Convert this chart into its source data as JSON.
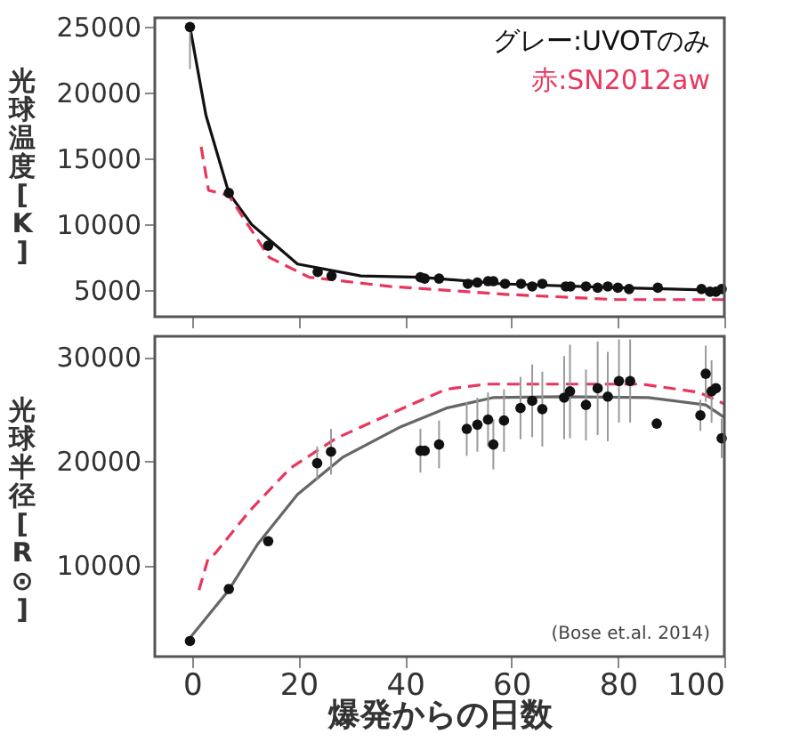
{
  "chart_data": [
    {
      "type": "scatter",
      "ylabel": "光球温度[K]",
      "xlim": [
        -7,
        100
      ],
      "xticks": [
        {
          "value": 0,
          "label": null
        },
        {
          "value": 20,
          "label": null
        },
        {
          "value": 40,
          "label": null
        },
        {
          "value": 60,
          "label": null
        },
        {
          "value": 80,
          "label": null
        },
        {
          "value": 100,
          "label": null
        }
      ],
      "ylim": [
        3000,
        25700
      ],
      "yticks": [
        5000,
        10000,
        15000,
        20000,
        25000
      ],
      "tick_labels": "y",
      "grid": false,
      "annotations": [
        "グレー:UVOTのみ",
        "赤:SN2012aw"
      ],
      "series": [
        {
          "type": "line",
          "color": "#111111",
          "line_style": "solid",
          "x": [
            -0.4,
            2.6,
            6.9,
            11.2,
            19.8,
            31.7,
            43,
            58,
            80,
            100
          ],
          "values": [
            25000,
            18300,
            12400,
            10000,
            7000,
            6100,
            6000,
            5500,
            5200,
            5000
          ]
        },
        {
          "type": "line",
          "color": "#e8365d",
          "line_style": "dashed",
          "x": [
            1.7,
            3.1,
            6.9,
            14.5,
            22,
            37.1,
            58.8,
            79.8,
            100
          ],
          "values": [
            15900,
            12600,
            12200,
            7500,
            6000,
            5300,
            4700,
            4300,
            4300
          ]
        },
        {
          "color": "#111111",
          "marker": "circle",
          "x": [
            -0.4,
            6.9,
            14.3,
            23.6,
            26.2,
            42.9,
            43.7,
            46.4,
            51.8,
            53.6,
            55.6,
            56.6,
            58.8,
            61.8,
            63.9,
            65.8,
            70.2,
            71.1,
            74,
            76.2,
            78.1,
            80,
            82.1,
            87.5,
            95.7,
            97.3,
            98.4,
            99.5
          ],
          "values": [
            25000,
            12400,
            8400,
            6400,
            6100,
            6000,
            5900,
            5900,
            5500,
            5600,
            5700,
            5700,
            5500,
            5500,
            5300,
            5500,
            5300,
            5300,
            5300,
            5200,
            5300,
            5200,
            5100,
            5200,
            5100,
            4900,
            4900,
            5100
          ],
          "errors": [
            [
              21800,
              25000
            ],
            null,
            null,
            null,
            null,
            null,
            null,
            null,
            null,
            null,
            null,
            null,
            null,
            null,
            null,
            null,
            null,
            null,
            null,
            null,
            null,
            null,
            null,
            null,
            null,
            null,
            null,
            null
          ]
        }
      ]
    },
    {
      "type": "scatter",
      "ylabel": "光球半径[R⊙]",
      "xlabel": "爆発からの日数",
      "xlim": [
        -7,
        100
      ],
      "xticks": [
        0,
        20,
        40,
        60,
        80,
        100
      ],
      "ylim": [
        1200,
        32000
      ],
      "yticks": [
        10000,
        20000,
        30000
      ],
      "grid": false,
      "annotations": [
        "(Bose et.al. 2014)"
      ],
      "series": [
        {
          "type": "line",
          "color": "#666666",
          "line_style": "solid",
          "x": [
            -0.4,
            6.9,
            12.3,
            19.8,
            28.4,
            39.2,
            47.8,
            56.5,
            69.4,
            85.7,
            96.5,
            100
          ],
          "values": [
            3000,
            7600,
            12000,
            16800,
            20400,
            23300,
            25100,
            26100,
            26200,
            26100,
            25400,
            24200
          ]
        },
        {
          "type": "line",
          "color": "#e8365d",
          "line_style": "dashed",
          "x": [
            1.3,
            3,
            4.3,
            10.8,
            18.4,
            27.1,
            37.9,
            47.7,
            55.3,
            68.3,
            84.5,
            95.3,
            100
          ],
          "values": [
            7600,
            10600,
            11100,
            15200,
            19300,
            22200,
            24700,
            26900,
            27400,
            27400,
            27400,
            26600,
            25500
          ]
        },
        {
          "color": "#111111",
          "marker": "circle",
          "x": [
            -0.4,
            6.9,
            14.3,
            23.5,
            26.1,
            42.9,
            43.7,
            46.4,
            51.6,
            53.6,
            55.6,
            56.6,
            58.6,
            61.7,
            63.9,
            65.8,
            69.9,
            71,
            74,
            76.2,
            78.1,
            80.2,
            82.3,
            87.3,
            95.5,
            96.5,
            97.6,
            98.4,
            99.5
          ],
          "values": [
            2700,
            7700,
            12300,
            19800,
            20900,
            21000,
            21000,
            21600,
            23100,
            23500,
            24000,
            21600,
            23900,
            25100,
            25800,
            25000,
            26100,
            26700,
            25400,
            27000,
            26200,
            27700,
            27700,
            23600,
            24400,
            28400,
            26700,
            27000,
            22200
          ],
          "errors": [
            null,
            null,
            null,
            1600,
            2200,
            2100,
            null,
            2300,
            2600,
            2600,
            2600,
            2400,
            3000,
            3000,
            3500,
            3600,
            4000,
            4500,
            3400,
            4500,
            4300,
            4000,
            4000,
            500,
            1500,
            2700,
            3000,
            null,
            1900
          ]
        }
      ]
    }
  ]
}
